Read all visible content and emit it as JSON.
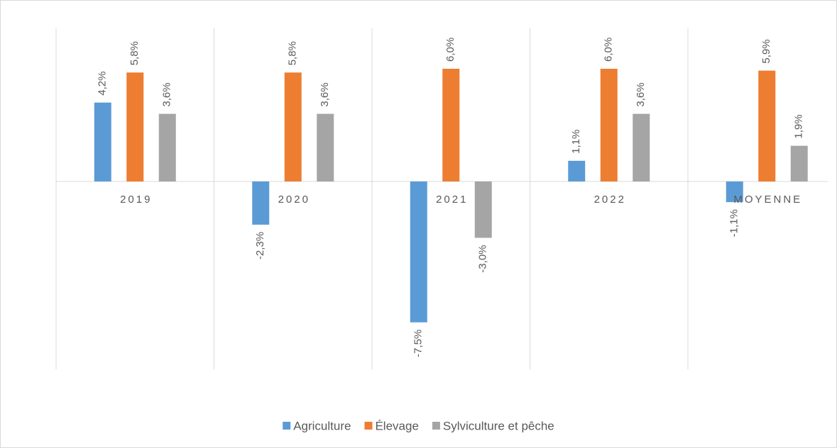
{
  "chart_data": {
    "type": "bar",
    "categories": [
      "2019",
      "2020",
      "2021",
      "2022",
      "MOYENNE"
    ],
    "series": [
      {
        "name": "Agriculture",
        "color": "#5b9bd5",
        "values": [
          4.2,
          -2.3,
          -7.5,
          1.1,
          -1.1
        ],
        "value_labels": [
          "4,2%",
          "-2,3%",
          "-7,5%",
          "1,1%",
          "-1,1%"
        ]
      },
      {
        "name": "Élevage",
        "color": "#ed7d31",
        "values": [
          5.8,
          5.8,
          6.0,
          6.0,
          5.9
        ],
        "value_labels": [
          "5,8%",
          "5,8%",
          "6,0%",
          "6,0%",
          "5,9%"
        ]
      },
      {
        "name": "Sylviculture et pêche",
        "color": "#a5a5a5",
        "values": [
          3.6,
          3.6,
          -3.0,
          3.6,
          1.9
        ],
        "value_labels": [
          "3,6%",
          "3,6%",
          "-3,0%",
          "3,6%",
          "1,9%"
        ]
      }
    ],
    "ylim": [
      -10,
      8
    ],
    "legend": "bottom"
  }
}
